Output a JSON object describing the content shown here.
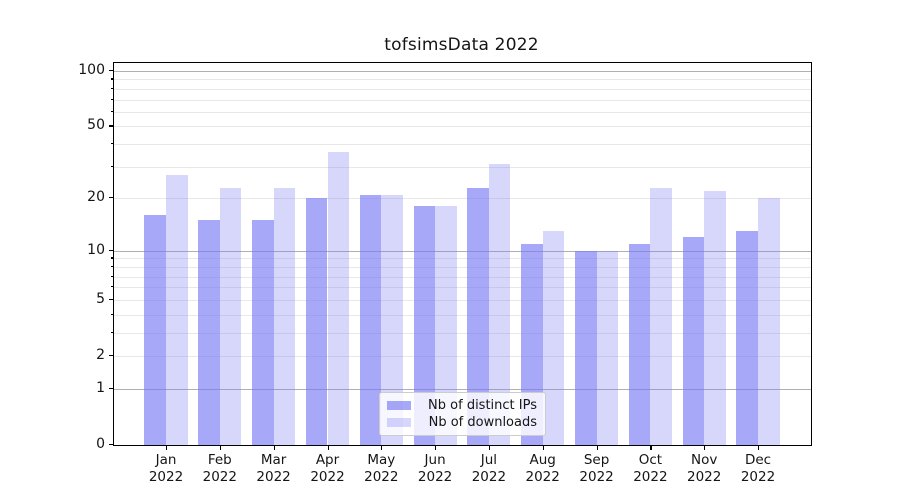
{
  "figure": {
    "background": "#ffffff"
  },
  "chart_data": {
    "type": "bar",
    "title": "tofsimsData 2022",
    "xlabel": "",
    "ylabel": "",
    "categories": [
      "Jan",
      "Feb",
      "Mar",
      "Apr",
      "May",
      "Jun",
      "Jul",
      "Aug",
      "Sep",
      "Oct",
      "Nov",
      "Dec"
    ],
    "x_tick_year": "2022",
    "series": [
      {
        "name": "Nb of distinct IPs",
        "color": "#7979f4",
        "alpha": 0.65,
        "composite_color": "#a8a8f8",
        "values": [
          16,
          15,
          15,
          20,
          21,
          18,
          23,
          11,
          10,
          11,
          12,
          13
        ]
      },
      {
        "name": "Nb of downloads",
        "color": "#7979f4",
        "alpha": 0.3,
        "composite_color": "#d8d8fa",
        "values": [
          27,
          23,
          23,
          36,
          21,
          18,
          31,
          13,
          10,
          23,
          22,
          20
        ]
      }
    ],
    "y_axis": {
      "scale": "log1p",
      "ylim": [
        0,
        111
      ],
      "labeled_ticks": [
        100,
        50,
        20,
        10,
        5,
        2,
        1,
        0
      ],
      "major_grid_values": [
        1,
        10,
        100
      ],
      "minor_grid_values": [
        2,
        3,
        4,
        5,
        6,
        7,
        8,
        9,
        20,
        30,
        40,
        50,
        60,
        70,
        80,
        90
      ]
    },
    "grid": {
      "visible": true,
      "major_color": "#b0b0b0",
      "minor_color": "#e8e8e8"
    },
    "legend": {
      "position": "lower center",
      "entries": [
        "Nb of distinct IPs",
        "Nb of downloads"
      ]
    }
  }
}
